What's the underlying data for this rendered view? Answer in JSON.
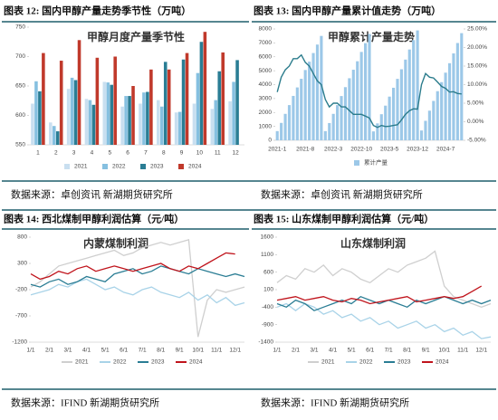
{
  "chart_data": [
    {
      "type": "bar",
      "caption": "图表 12:  国内甲醇产量走势季节性（万吨）",
      "title": "甲醇月度产量季节性",
      "source": "数据来源：卓创资讯  新湖期货研究所",
      "categories": [
        "1",
        "2",
        "3",
        "4",
        "5",
        "6",
        "7",
        "8",
        "9",
        "10",
        "11",
        "12"
      ],
      "series": [
        {
          "name": "2021",
          "color": "#c9dff0",
          "values": [
            620,
            588,
            645,
            628,
            657,
            615,
            620,
            626,
            605,
            620,
            611,
            624
          ]
        },
        {
          "name": "2022",
          "color": "#86c0e0",
          "values": [
            658,
            582,
            664,
            626,
            656,
            633,
            639,
            615,
            606,
            672,
            626,
            657
          ]
        },
        {
          "name": "2023",
          "color": "#2a7d94",
          "values": [
            641,
            573,
            660,
            618,
            652,
            633,
            640,
            691,
            695,
            725,
            675,
            694
          ]
        },
        {
          "name": "2024",
          "color": "#c0392b",
          "values": [
            706,
            693,
            728,
            698,
            700,
            650,
            678,
            678,
            706,
            742,
            707,
            null
          ]
        }
      ],
      "ylim": [
        550,
        750
      ],
      "yticks": [
        550,
        600,
        650,
        700,
        750
      ]
    },
    {
      "type": "combo",
      "caption": "图表 13:  国内甲醇产量累计值走势（万吨）",
      "title": "甲醇累计产量走势",
      "source": "数据来源：卓创资讯  新湖期货研究所",
      "categories": [
        "2021-1",
        null,
        null,
        null,
        null,
        null,
        null,
        "2021-8",
        null,
        null,
        null,
        null,
        null,
        null,
        "2022-3",
        null,
        null,
        null,
        null,
        null,
        null,
        "2022-10",
        null,
        null,
        null,
        null,
        null,
        null,
        "2023-5",
        null,
        null,
        null,
        null,
        null,
        null,
        "2023-12",
        null,
        null,
        null,
        null,
        null,
        null,
        "2024-7",
        null,
        null,
        null,
        null
      ],
      "series": [
        {
          "name": "累计产量",
          "color": "#9cc8e8",
          "values": [
            660,
            1250,
            1900,
            2530,
            3190,
            3800,
            4420,
            5050,
            5650,
            6270,
            6880,
            7500,
            660,
            1240,
            1900,
            2530,
            3180,
            3820,
            4460,
            5070,
            5680,
            6350,
            6980,
            7640,
            640,
            1215,
            1875,
            2490,
            3140,
            3775,
            4415,
            5105,
            5800,
            6525,
            7200,
            7895,
            705,
            1400,
            2130,
            2830,
            3530,
            4180,
            4860,
            5540,
            6245,
            6990,
            7700
          ]
        },
        {
          "color": "#2b7c8c",
          "axis": "y2",
          "values": [
            8,
            12,
            14,
            15,
            17,
            17,
            18,
            16,
            15,
            13,
            11,
            10,
            6,
            4,
            5,
            5,
            4,
            4,
            3,
            2,
            2,
            2,
            1.5,
            1,
            -1,
            -1.5,
            -1,
            -1.3,
            -1.2,
            -1,
            -0.8,
            0.5,
            2,
            3,
            3.5,
            3.4,
            10,
            13,
            12,
            11.8,
            10.7,
            9.5,
            9,
            8,
            8.1,
            7.6,
            7.5
          ]
        }
      ],
      "ylim": [
        0,
        8000
      ],
      "yticks": [
        0,
        1000,
        2000,
        3000,
        4000,
        5000,
        6000,
        7000,
        8000
      ],
      "y2lim": [
        -5,
        25
      ],
      "y2ticks": [
        {
          "value": -5,
          "label": "-5.00%"
        },
        {
          "value": 0,
          "label": "0.00%"
        },
        {
          "value": 5,
          "label": "5.00%"
        },
        {
          "value": 10,
          "label": "10.00%"
        },
        {
          "value": 15,
          "label": "15.00%"
        },
        {
          "value": 20,
          "label": "20.00%"
        },
        {
          "value": 25,
          "label": "25.00%"
        }
      ]
    },
    {
      "type": "line",
      "caption": "图表 14:  西北煤制甲醇利润估算（元/吨）",
      "title": "内蒙煤制利润",
      "source": "数据来源：IFIND  新湖期货研究所",
      "categories": [
        "1/1",
        null,
        "2/1",
        null,
        "3/1",
        null,
        "4/1",
        null,
        "5/1",
        null,
        "6/1",
        null,
        "7/1",
        null,
        "8/1",
        null,
        "9/1",
        null,
        "10/1",
        null,
        "11/1",
        null,
        "12/1",
        null
      ],
      "series": [
        {
          "name": "2021",
          "color": "#cfcfcf",
          "values": [
            -150,
            -50,
            100,
            250,
            300,
            350,
            400,
            450,
            500,
            550,
            450,
            500,
            600,
            650,
            700,
            650,
            700,
            750,
            -1100,
            -400,
            -200,
            -250,
            -200,
            -150
          ]
        },
        {
          "name": "2022",
          "color": "#a9d3e8",
          "values": [
            -300,
            -250,
            -200,
            -100,
            -150,
            -50,
            0,
            -100,
            -200,
            -150,
            -250,
            -300,
            -200,
            -150,
            -250,
            -300,
            -350,
            -250,
            -400,
            -300,
            -450,
            -350,
            -500,
            -450
          ]
        },
        {
          "name": "2023",
          "color": "#2a7d94",
          "values": [
            -100,
            -150,
            -50,
            0,
            -100,
            -50,
            50,
            0,
            -50,
            100,
            150,
            200,
            100,
            150,
            250,
            200,
            150,
            100,
            200,
            150,
            100,
            50,
            100,
            50
          ]
        },
        {
          "name": "2024",
          "color": "#c0141c",
          "values": [
            100,
            0,
            50,
            150,
            100,
            200,
            250,
            150,
            200,
            250,
            200,
            150,
            200,
            250,
            300,
            200,
            150,
            250,
            200,
            300,
            400,
            500,
            480,
            null
          ]
        }
      ],
      "ylim": [
        -1200,
        800
      ],
      "yticks": [
        800,
        300,
        -200,
        -700,
        -1200
      ]
    },
    {
      "type": "line",
      "caption": "图表 15:  山东煤制甲醇利润估算（元/吨）",
      "title": "山东煤制利润",
      "source": "数据来源：IFIND  新湖期货研究所",
      "categories": [
        "1/1",
        null,
        "2/1",
        null,
        "3/1",
        null,
        "4/1",
        null,
        "5/1",
        null,
        "6/1",
        null,
        "7/1",
        null,
        "8/1",
        null,
        "9/1",
        null,
        "10/1",
        null,
        "11/1",
        null,
        "12/1",
        null
      ],
      "series": [
        {
          "name": "2021",
          "color": "#cfcfcf",
          "values": [
            300,
            500,
            400,
            700,
            600,
            800,
            500,
            700,
            600,
            400,
            300,
            500,
            700,
            600,
            800,
            900,
            1000,
            1200,
            200,
            -100,
            -200,
            -300,
            -400,
            -300
          ]
        },
        {
          "name": "2022",
          "color": "#a9d3e8",
          "values": [
            -400,
            -300,
            -500,
            -300,
            -400,
            -600,
            -500,
            -700,
            -600,
            -800,
            -700,
            -900,
            -800,
            -1000,
            -900,
            -800,
            -1000,
            -900,
            -1100,
            -1000,
            -1200,
            -1100,
            -1300,
            -1250
          ]
        },
        {
          "name": "2023",
          "color": "#2a7d94",
          "values": [
            -300,
            -400,
            -200,
            -300,
            -500,
            -400,
            -300,
            -200,
            -300,
            -100,
            -200,
            -300,
            -200,
            -300,
            -400,
            -200,
            -300,
            -200,
            -100,
            -200,
            -300,
            -200,
            -300,
            -200
          ]
        },
        {
          "name": "2024",
          "color": "#c0141c",
          "values": [
            -200,
            -150,
            -100,
            -200,
            -150,
            -100,
            -200,
            -250,
            -150,
            -200,
            -300,
            -250,
            -200,
            -150,
            -100,
            -250,
            -200,
            -150,
            -100,
            -150,
            -100,
            50,
            200,
            null
          ]
        }
      ],
      "ylim": [
        -1400,
        1600
      ],
      "yticks": [
        1600,
        1100,
        600,
        100,
        -400,
        -900,
        -1400
      ]
    }
  ]
}
